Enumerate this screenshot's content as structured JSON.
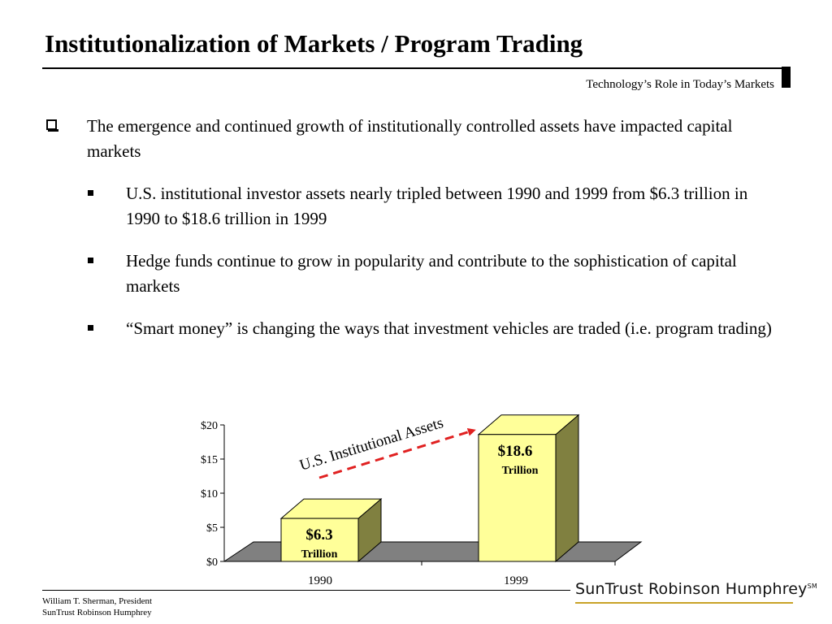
{
  "header": {
    "title": "Institutionalization of Markets / Program Trading",
    "subtitle": "Technology’s Role in Today’s Markets"
  },
  "bullets": {
    "main": "The emergence and continued growth of institutionally controlled assets have impacted capital markets",
    "subs": [
      "U.S. institutional investor assets nearly tripled between 1990 and 1999 from $6.3 trillion in 1990 to $18.6 trillion in 1999",
      "Hedge funds continue to grow in popularity and contribute to the sophistication of capital markets",
      "“Smart money” is changing the ways that investment vehicles are traded (i.e. program trading)"
    ]
  },
  "chart_data": {
    "type": "bar",
    "categories": [
      "1990",
      "1999"
    ],
    "values": [
      6.3,
      18.6
    ],
    "data_labels": [
      {
        "value": "$6.3",
        "unit": "Trillion"
      },
      {
        "value": "$18.6",
        "unit": "Trillion"
      }
    ],
    "annotation": "U.S. Institutional Assets",
    "yticks": [
      "$0",
      "$5",
      "$10",
      "$15",
      "$20"
    ],
    "ylim": [
      0,
      20
    ],
    "bar_color": "#ffff99",
    "bar_side_color": "#808040",
    "floor_color": "#808080",
    "arrow_color": "#e02020"
  },
  "footer": {
    "line1": "William T. Sherman, President",
    "line2": "SunTrust Robinson Humphrey",
    "logo": "SunTrust Robinson Humphrey",
    "logo_mark": "SM"
  }
}
